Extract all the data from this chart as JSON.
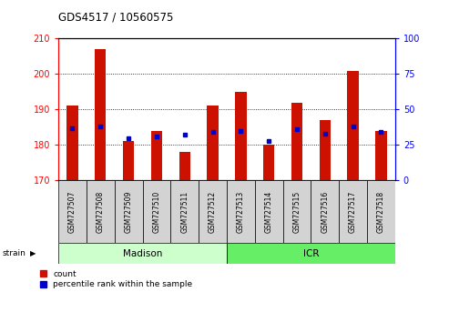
{
  "title": "GDS4517 / 10560575",
  "samples": [
    "GSM727507",
    "GSM727508",
    "GSM727509",
    "GSM727510",
    "GSM727511",
    "GSM727512",
    "GSM727513",
    "GSM727514",
    "GSM727515",
    "GSM727516",
    "GSM727517",
    "GSM727518"
  ],
  "count_values": [
    191,
    207,
    181,
    184,
    178,
    191,
    195,
    180,
    192,
    187,
    201,
    184
  ],
  "percentile_values": [
    37,
    38,
    30,
    31,
    32,
    34,
    35,
    28,
    36,
    33,
    38,
    34
  ],
  "ylim_left": [
    170,
    210
  ],
  "ylim_right": [
    0,
    100
  ],
  "yticks_left": [
    170,
    180,
    190,
    200,
    210
  ],
  "yticks_right": [
    0,
    25,
    50,
    75,
    100
  ],
  "bar_color": "#cc1100",
  "dot_color": "#0000cc",
  "madison_group": [
    0,
    1,
    2,
    3,
    4,
    5
  ],
  "icr_group": [
    6,
    7,
    8,
    9,
    10,
    11
  ],
  "madison_color": "#ccffcc",
  "icr_color": "#66ee66",
  "legend_count": "count",
  "legend_pct": "percentile rank within the sample"
}
